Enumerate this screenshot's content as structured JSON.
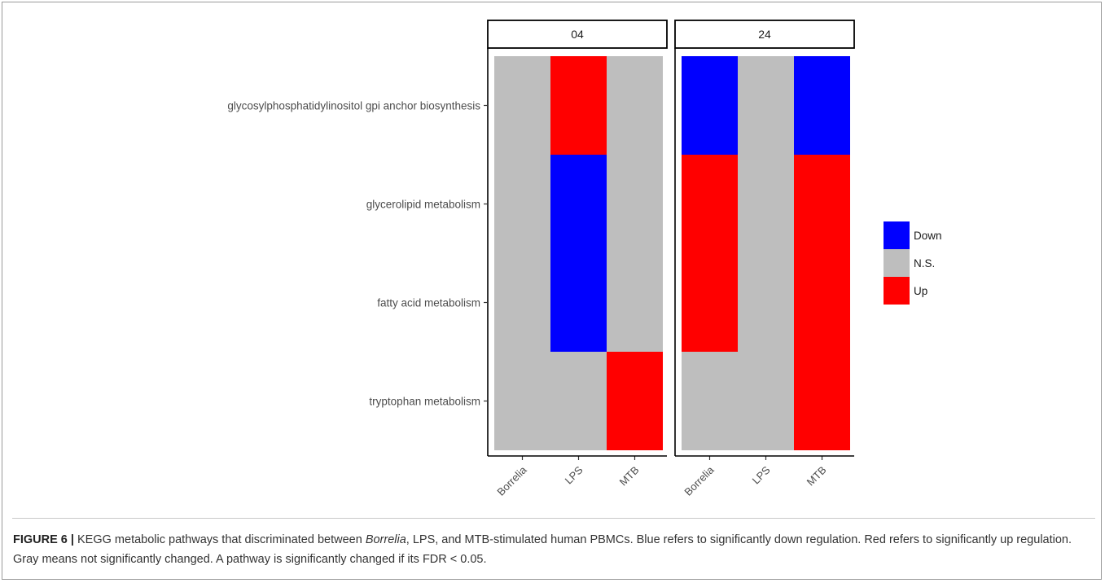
{
  "chart_data": {
    "type": "heatmap",
    "panels": [
      "04",
      "24"
    ],
    "columns": [
      "Borrelia",
      "LPS",
      "MTB"
    ],
    "rows": [
      "glycosylphosphatidylinositol gpi anchor biosynthesis",
      "glycerolipid metabolism",
      "fatty acid metabolism",
      "tryptophan metabolism"
    ],
    "cells": {
      "04": [
        [
          "N.S.",
          "Up",
          "N.S."
        ],
        [
          "N.S.",
          "Down",
          "N.S."
        ],
        [
          "N.S.",
          "Down",
          "N.S."
        ],
        [
          "N.S.",
          "N.S.",
          "Up"
        ]
      ],
      "24": [
        [
          "Down",
          "N.S.",
          "Down"
        ],
        [
          "Up",
          "N.S.",
          "Up"
        ],
        [
          "Up",
          "N.S.",
          "Up"
        ],
        [
          "N.S.",
          "N.S.",
          "Up"
        ]
      ]
    },
    "legend": [
      {
        "label": "Down",
        "color": "#0000ff"
      },
      {
        "label": "N.S.",
        "color": "#bebebe"
      },
      {
        "label": "Up",
        "color": "#ff0000"
      }
    ],
    "legend_position": "right",
    "grid": false
  },
  "caption": {
    "label": "FIGURE 6 |",
    "part1": " KEGG metabolic pathways that discriminated between ",
    "italic": "Borrelia",
    "part2": ", LPS, and MTB-stimulated human PBMCs. Blue refers to significantly down regulation. Red refers to significantly up regulation. Gray means not significantly changed. A pathway is significantly changed if its FDR < 0.05."
  }
}
